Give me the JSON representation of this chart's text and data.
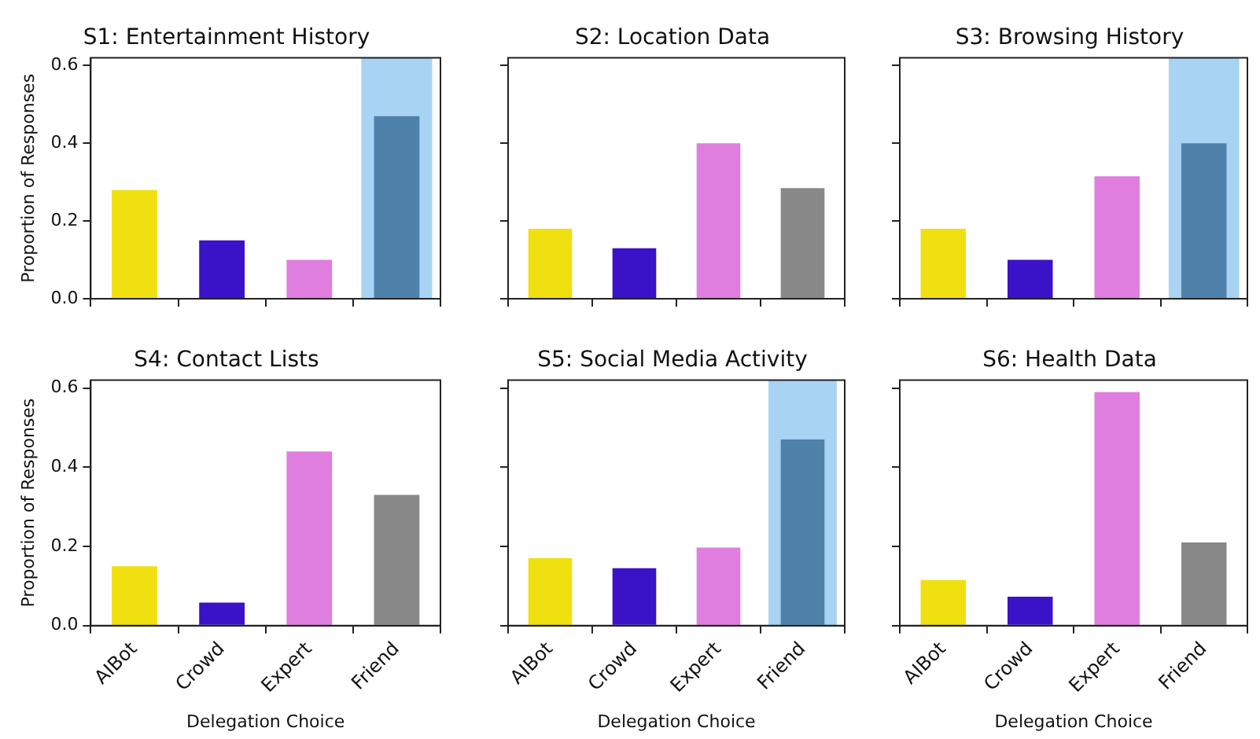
{
  "chart_data": [
    {
      "type": "bar",
      "title": "S1: Entertainment History",
      "ylabel": "Proportion of Responses",
      "categories": [
        "AIBot",
        "Crowd",
        "Expert",
        "Friend"
      ],
      "values": [
        0.28,
        0.15,
        0.1,
        0.47
      ],
      "colors": [
        "#f0e010",
        "#3a12c8",
        "#e07ee0",
        "#4f82aa"
      ],
      "ylim": [
        0,
        0.62
      ],
      "yticks": [
        {
          "value": 0,
          "label": "0.0"
        },
        {
          "value": 0.2,
          "label": "0.2"
        },
        {
          "value": 0.4,
          "label": "0.4"
        },
        {
          "value": 0.6,
          "label": "0.6"
        }
      ],
      "bands": [
        {
          "axis": "x",
          "from": "Friend",
          "to": "Friend",
          "color": "#8cc4ee"
        }
      ],
      "tick_labels": "y",
      "grid": false,
      "legend": false
    },
    {
      "type": "bar",
      "title": "S2: Location Data",
      "categories": [
        "AIBot",
        "Crowd",
        "Expert",
        "Friend"
      ],
      "values": [
        0.18,
        0.13,
        0.4,
        0.285
      ],
      "colors": [
        "#f0e010",
        "#3a12c8",
        "#e07ee0",
        "#888888"
      ],
      "ylim": [
        0,
        0.62
      ],
      "yticks": [
        {
          "value": 0,
          "label": null
        },
        {
          "value": 0.2,
          "label": null
        },
        {
          "value": 0.4,
          "label": null
        },
        {
          "value": 0.6,
          "label": null
        }
      ],
      "tick_labels": false,
      "grid": false,
      "legend": false
    },
    {
      "type": "bar",
      "title": "S3: Browsing History",
      "categories": [
        "AIBot",
        "Crowd",
        "Expert",
        "Friend"
      ],
      "values": [
        0.18,
        0.1,
        0.315,
        0.4
      ],
      "colors": [
        "#f0e010",
        "#3a12c8",
        "#e07ee0",
        "#4f82aa"
      ],
      "ylim": [
        0,
        0.62
      ],
      "yticks": [
        {
          "value": 0,
          "label": null
        },
        {
          "value": 0.2,
          "label": null
        },
        {
          "value": 0.4,
          "label": null
        },
        {
          "value": 0.6,
          "label": null
        }
      ],
      "bands": [
        {
          "axis": "x",
          "from": "Friend",
          "to": "Friend",
          "color": "#8cc4ee"
        }
      ],
      "tick_labels": false,
      "grid": false,
      "legend": false
    },
    {
      "type": "bar",
      "title": "S4: Contact Lists",
      "ylabel": "Proportion of Responses",
      "xlabel": "Delegation Choice",
      "categories": [
        "AIBot",
        "Crowd",
        "Expert",
        "Friend"
      ],
      "values": [
        0.15,
        0.058,
        0.44,
        0.33
      ],
      "colors": [
        "#f0e010",
        "#3a12c8",
        "#e07ee0",
        "#888888"
      ],
      "ylim": [
        0,
        0.62
      ],
      "yticks": [
        {
          "value": 0,
          "label": "0.0"
        },
        {
          "value": 0.2,
          "label": "0.2"
        },
        {
          "value": 0.4,
          "label": "0.4"
        },
        {
          "value": 0.6,
          "label": "0.6"
        }
      ],
      "grid": false,
      "legend": false
    },
    {
      "type": "bar",
      "title": "S5: Social Media Activity",
      "xlabel": "Delegation Choice",
      "categories": [
        "AIBot",
        "Crowd",
        "Expert",
        "Friend"
      ],
      "values": [
        0.17,
        0.145,
        0.197,
        0.47
      ],
      "colors": [
        "#f0e010",
        "#3a12c8",
        "#e07ee0",
        "#4f82aa"
      ],
      "ylim": [
        0,
        0.62
      ],
      "yticks": [
        {
          "value": 0,
          "label": null
        },
        {
          "value": 0.2,
          "label": null
        },
        {
          "value": 0.4,
          "label": null
        },
        {
          "value": 0.6,
          "label": null
        }
      ],
      "bands": [
        {
          "axis": "x",
          "from": "Friend",
          "to": "Friend",
          "color": "#8cc4ee"
        }
      ],
      "tick_labels": "x",
      "grid": false,
      "legend": false
    },
    {
      "type": "bar",
      "title": "S6: Health Data",
      "xlabel": "Delegation Choice",
      "categories": [
        "AIBot",
        "Crowd",
        "Expert",
        "Friend"
      ],
      "values": [
        0.115,
        0.073,
        0.59,
        0.21
      ],
      "colors": [
        "#f0e010",
        "#3a12c8",
        "#e07ee0",
        "#888888"
      ],
      "ylim": [
        0,
        0.62
      ],
      "yticks": [
        {
          "value": 0,
          "label": null
        },
        {
          "value": 0.2,
          "label": null
        },
        {
          "value": 0.4,
          "label": null
        },
        {
          "value": 0.6,
          "label": null
        }
      ],
      "tick_labels": "x",
      "grid": false,
      "legend": false
    }
  ]
}
